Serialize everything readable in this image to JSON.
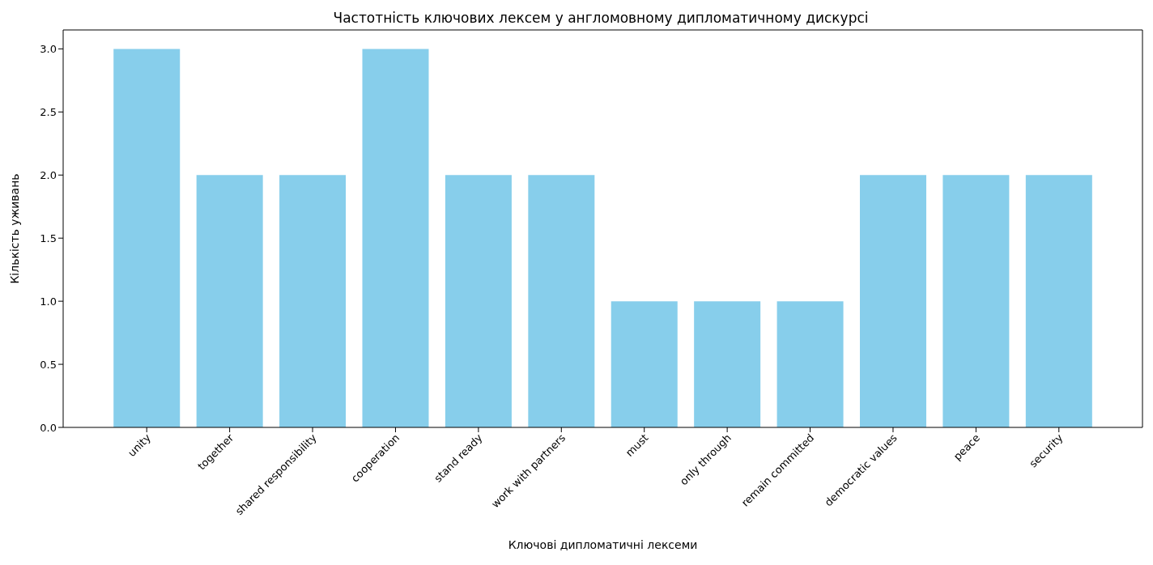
{
  "chart_data": {
    "type": "bar",
    "title": "Частотність ключових лексем у англомовному дипломатичному дискурсі",
    "xlabel": "Ключові дипломатичні лексеми",
    "ylabel": "Кількість уживань",
    "categories": [
      "unity",
      "together",
      "shared responsibility",
      "cooperation",
      "stand ready",
      "work with partners",
      "must",
      "only through",
      "remain committed",
      "democratic values",
      "peace",
      "security"
    ],
    "values": [
      3,
      2,
      2,
      3,
      2,
      2,
      1,
      1,
      1,
      2,
      2,
      2
    ],
    "color": "#87ceeb",
    "ylim": [
      0,
      3.15
    ],
    "yticks": [
      {
        "value": 0,
        "label": "0.0"
      },
      {
        "value": 0.5,
        "label": "0.5"
      },
      {
        "value": 1,
        "label": "1.0"
      },
      {
        "value": 1.5,
        "label": "1.5"
      },
      {
        "value": 2,
        "label": "2.0"
      },
      {
        "value": 2.5,
        "label": "2.5"
      },
      {
        "value": 3,
        "label": "3.0"
      }
    ],
    "grid": false,
    "legend": false
  }
}
